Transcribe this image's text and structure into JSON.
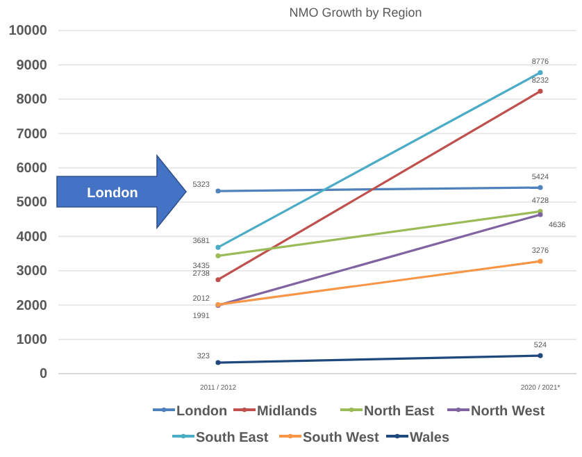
{
  "chart_data": {
    "type": "line",
    "title": "NMO Growth by Region",
    "categories": [
      "2011 / 2012",
      "2020 / 2021*"
    ],
    "series": [
      {
        "name": "London",
        "color": "#4f81bd",
        "values": [
          5323,
          5424
        ]
      },
      {
        "name": "Midlands",
        "color": "#c0504d",
        "values": [
          2738,
          8232
        ]
      },
      {
        "name": "North East",
        "color": "#9bbb59",
        "values": [
          3435,
          4728
        ]
      },
      {
        "name": "North West",
        "color": "#8064a2",
        "values": [
          1991,
          4636
        ]
      },
      {
        "name": "South East",
        "color": "#4bacc6",
        "values": [
          3681,
          8776
        ]
      },
      {
        "name": "South West",
        "color": "#f79646",
        "values": [
          2012,
          3276
        ]
      },
      {
        "name": "Wales",
        "color": "#1f497d",
        "values": [
          323,
          524
        ]
      }
    ],
    "ylim": [
      0,
      10000
    ],
    "yticks": [
      0,
      1000,
      2000,
      3000,
      4000,
      5000,
      6000,
      7000,
      8000,
      9000,
      10000
    ],
    "grid": "y",
    "legend": "bottom",
    "marker": "circle",
    "data_labels": true,
    "annotations": [
      "London"
    ]
  }
}
